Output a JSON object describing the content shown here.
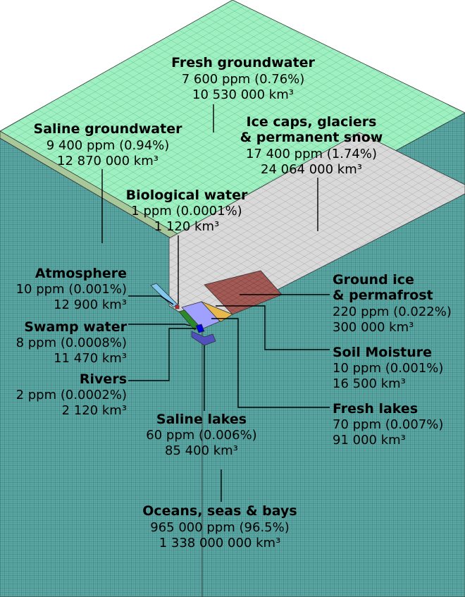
{
  "colors": {
    "ocean": "#5aa7a3",
    "fresh_groundwater": "#9ef0c0",
    "saline_groundwater": "#a8c89a",
    "ice_caps": "#d9d9d9",
    "ground_ice": "#a35a55",
    "soil_moisture": "#e8b84a",
    "fresh_lakes": "#a0a0ff",
    "saline_lakes": "#5050c0",
    "swamp_water": "#2a8a2a",
    "rivers": "#0000e0",
    "atmosphere": "#80c8f0",
    "biological": "#d02020"
  },
  "labels": {
    "fresh_groundwater": {
      "title": "Fresh groundwater",
      "ppm": "7 600 ppm (0.76%)",
      "volume": "10 530 000 km³"
    },
    "saline_groundwater": {
      "title": "Saline groundwater",
      "ppm": "9 400 ppm (0.94%)",
      "volume": "12 870 000 km³"
    },
    "ice_caps": {
      "title_1": "Ice caps, glaciers",
      "title_2": "& permanent snow",
      "ppm": "17 400 ppm (1.74%)",
      "volume": "24 064 000 km³"
    },
    "biological": {
      "title": "Biological water",
      "ppm": "1 ppm (0.0001%)",
      "volume": "1 120 km³"
    },
    "atmosphere": {
      "title": "Atmosphere",
      "ppm": "10 ppm (0.001%)",
      "volume": "12 900 km³"
    },
    "swamp": {
      "title": "Swamp water",
      "ppm": "8 ppm (0.0008%)",
      "volume": "11 470 km³"
    },
    "rivers": {
      "title": "Rivers",
      "ppm": "2 ppm (0.0002%)",
      "volume": "2 120 km³"
    },
    "ground_ice": {
      "title_1": "Ground ice",
      "title_2": "& permafrost",
      "ppm": "220 ppm (0.022%)",
      "volume": "300 000 km³"
    },
    "soil_moisture": {
      "title": "Soil Moisture",
      "ppm": "10 ppm (0.001%)",
      "volume": "16 500 km³"
    },
    "fresh_lakes": {
      "title": "Fresh lakes",
      "ppm": "70 ppm (0.007%)",
      "volume": "91 000 km³"
    },
    "saline_lakes": {
      "title": "Saline lakes",
      "ppm": "60 ppm (0.006%)",
      "volume": "85 400 km³"
    },
    "oceans": {
      "title": "Oceans, seas & bays",
      "ppm": "965 000 ppm (96.5%)",
      "volume": "1 338 000 000 km³"
    }
  }
}
